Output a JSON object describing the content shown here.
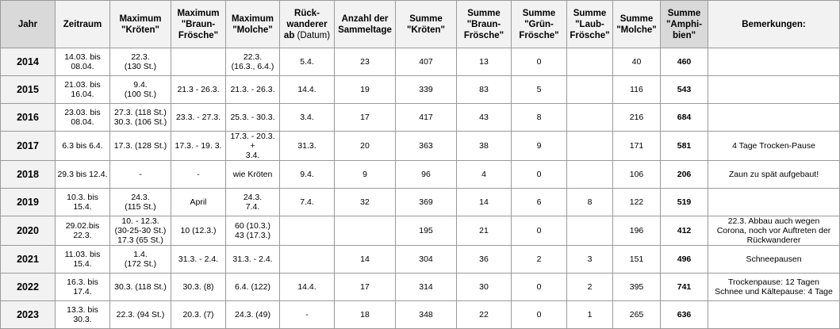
{
  "table": {
    "headers": {
      "jahr": "Jahr",
      "zeitraum": "Zeitraum",
      "max_kroeten": "Maximum\n\"Kröten\"",
      "max_braun": "Maximum\n\"Braun-\nFrösche\"",
      "max_molche": "Maximum\n\"Molche\"",
      "rueck_main": "Rück-\nwanderer\nab",
      "rueck_sub": "(Datum)",
      "sammeltage": "Anzahl der\nSammeltage",
      "sum_kroeten": "Summe\n\"Kröten\"",
      "sum_braun": "Summe\n\"Braun-\nFrösche\"",
      "sum_gruen": "Summe\n\"Grün-\nFrösche\"",
      "sum_laub": "Summe\n\"Laub-\nFrösche\"",
      "sum_molche": "Summe\n\"Molche\"",
      "sum_amphibien": "Summe\n\"Amphi-\nbien\"",
      "bemerkungen": "Bemerkungen:"
    },
    "rows": [
      {
        "jahr": "2014",
        "zeitraum": "14.03. bis\n08.04.",
        "max_kroeten": "22.3.\n(130 St.)",
        "max_braun": "",
        "max_molche": "22.3.\n(16.3., 6.4.)",
        "rueck": "5.4.",
        "sammeltage": "23",
        "sum_kroeten": "407",
        "sum_braun": "13",
        "sum_gruen": "0",
        "sum_laub": "",
        "sum_molche": "40",
        "sum_amphibien": "460",
        "bemerkung": ""
      },
      {
        "jahr": "2015",
        "zeitraum": "21.03. bis\n16.04.",
        "max_kroeten": "9.4.\n(100 St.)",
        "max_braun": "21.3 - 26.3.",
        "max_molche": "21.3. - 26.3.",
        "rueck": "14.4.",
        "sammeltage": "19",
        "sum_kroeten": "339",
        "sum_braun": "83",
        "sum_gruen": "5",
        "sum_laub": "",
        "sum_molche": "116",
        "sum_amphibien": "543",
        "bemerkung": ""
      },
      {
        "jahr": "2016",
        "zeitraum": "23.03. bis\n08.04.",
        "max_kroeten": "27.3. (118 St.)\n30.3. (106 St.)",
        "max_braun": "23.3. - 27.3.",
        "max_molche": "25.3. - 30.3.",
        "rueck": "3.4.",
        "sammeltage": "17",
        "sum_kroeten": "417",
        "sum_braun": "43",
        "sum_gruen": "8",
        "sum_laub": "",
        "sum_molche": "216",
        "sum_amphibien": "684",
        "bemerkung": ""
      },
      {
        "jahr": "2017",
        "zeitraum": "6.3 bis 6.4.",
        "max_kroeten": "17.3. (128 St.)",
        "max_braun": "17.3. - 19. 3.",
        "max_molche": "17.3. - 20.3. +\n3.4.",
        "rueck": "31.3.",
        "sammeltage": "20",
        "sum_kroeten": "363",
        "sum_braun": "38",
        "sum_gruen": "9",
        "sum_laub": "",
        "sum_molche": "171",
        "sum_amphibien": "581",
        "bemerkung": "4 Tage Trocken-Pause"
      },
      {
        "jahr": "2018",
        "zeitraum": "29.3 bis 12.4.",
        "max_kroeten": "-",
        "max_braun": "-",
        "max_molche": "wie Kröten",
        "rueck": "9.4.",
        "sammeltage": "9",
        "sum_kroeten": "96",
        "sum_braun": "4",
        "sum_gruen": "0",
        "sum_laub": "",
        "sum_molche": "106",
        "sum_amphibien": "206",
        "bemerkung": "Zaun zu spät aufgebaut!"
      },
      {
        "jahr": "2019",
        "zeitraum": "10.3. bis 15.4.",
        "max_kroeten": "24.3.\n(115 St.)",
        "max_braun": "April",
        "max_molche": "24.3.\n7.4.",
        "rueck": "7.4.",
        "sammeltage": "32",
        "sum_kroeten": "369",
        "sum_braun": "14",
        "sum_gruen": "6",
        "sum_laub": "8",
        "sum_molche": "122",
        "sum_amphibien": "519",
        "bemerkung": ""
      },
      {
        "jahr": "2020",
        "zeitraum": "29.02.bis\n22.3.",
        "max_kroeten": "10. - 12.3.\n(30-25-30 St.)\n17.3 (65 St.)",
        "max_braun": "10 (12.3.)",
        "max_molche": "60 (10.3.)\n43 (17.3.)",
        "rueck": "",
        "sammeltage": "",
        "sum_kroeten": "195",
        "sum_braun": "21",
        "sum_gruen": "0",
        "sum_laub": "",
        "sum_molche": "196",
        "sum_amphibien": "412",
        "bemerkung": "22.3. Abbau auch wegen\nCorona, noch vor Auftreten der\nRückwanderer"
      },
      {
        "jahr": "2021",
        "zeitraum": "11.03. bis\n15.4.",
        "max_kroeten": "1.4.\n(172 St.)",
        "max_braun": "31.3. - 2.4.",
        "max_molche": "31.3. - 2.4.",
        "rueck": "",
        "sammeltage": "14",
        "sum_kroeten": "304",
        "sum_braun": "36",
        "sum_gruen": "2",
        "sum_laub": "3",
        "sum_molche": "151",
        "sum_amphibien": "496",
        "bemerkung": "Schneepausen"
      },
      {
        "jahr": "2022",
        "zeitraum": "16.3. bis 17.4.",
        "max_kroeten": "30.3. (118 St.)",
        "max_braun": "30.3. (8)",
        "max_molche": "6.4. (122)",
        "rueck": "14.4.",
        "sammeltage": "17",
        "sum_kroeten": "314",
        "sum_braun": "30",
        "sum_gruen": "0",
        "sum_laub": "2",
        "sum_molche": "395",
        "sum_amphibien": "741",
        "bemerkung": "Trockenpause: 12 Tagen\nSchnee und Kältepause: 4 Tage"
      },
      {
        "jahr": "2023",
        "zeitraum": "13.3. bis 30.3.",
        "max_kroeten": "22.3. (94 St.)",
        "max_braun": "20.3. (7)",
        "max_molche": "24.3. (49)",
        "rueck": "-",
        "sammeltage": "18",
        "sum_kroeten": "348",
        "sum_braun": "22",
        "sum_gruen": "0",
        "sum_laub": "1",
        "sum_molche": "265",
        "sum_amphibien": "636",
        "bemerkung": ""
      }
    ]
  }
}
